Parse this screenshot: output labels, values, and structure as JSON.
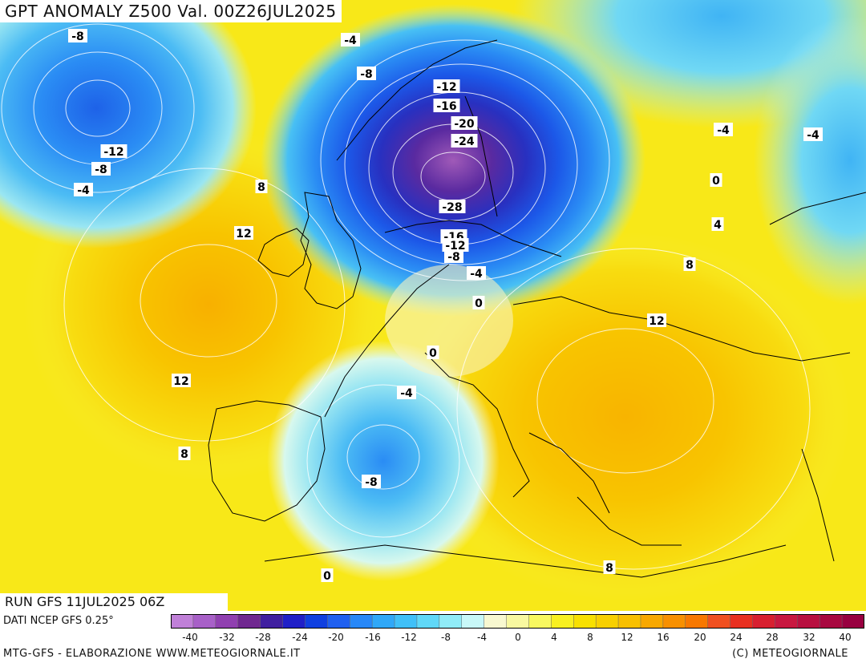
{
  "title": "GPT ANOMALY Z500 Val. 00Z26JUL2025",
  "run": "RUN GFS 11JUL2025 06Z",
  "data_source": "DATI NCEP GFS 0.25°",
  "footer_left": "MTG-GFS - ELABORAZIONE WWW.METEOGIORNALE.IT",
  "footer_right": "(C) METEOGIORNALE",
  "scale": {
    "ticks": [
      "-40",
      "-32",
      "-28",
      "-24",
      "-20",
      "-16",
      "-12",
      "-8",
      "-4",
      "0",
      "4",
      "8",
      "12",
      "16",
      "20",
      "24",
      "28",
      "32",
      "40"
    ],
    "colors": [
      "#c080d8",
      "#a860c8",
      "#9040b0",
      "#702890",
      "#4020a0",
      "#2020c8",
      "#1040e0",
      "#2060f0",
      "#2888f8",
      "#30a8f8",
      "#40c0f8",
      "#60d8f8",
      "#90ecf8",
      "#c8f8f8",
      "#f8f8d0",
      "#f8f8a0",
      "#f8f860",
      "#f8f020",
      "#f8e000",
      "#f8d000",
      "#f8c000",
      "#f8a800",
      "#f89000",
      "#f87800",
      "#f05020",
      "#e83020",
      "#d82030",
      "#c81840",
      "#b81040",
      "#a80840",
      "#980040"
    ]
  },
  "contour_labels": [
    {
      "text": "-8"
    },
    {
      "text": "-4"
    },
    {
      "text": "-8"
    },
    {
      "text": "-12"
    },
    {
      "text": "-16"
    },
    {
      "text": "-20"
    },
    {
      "text": "-24"
    },
    {
      "text": "-12"
    },
    {
      "text": "-8"
    },
    {
      "text": "-4"
    },
    {
      "text": "8"
    },
    {
      "text": "12"
    },
    {
      "text": "-28"
    },
    {
      "text": "-16"
    },
    {
      "text": "-12"
    },
    {
      "text": "-8"
    },
    {
      "text": "-4"
    },
    {
      "text": "0"
    },
    {
      "text": "-4"
    },
    {
      "text": "-4"
    },
    {
      "text": "0"
    },
    {
      "text": "4"
    },
    {
      "text": "8"
    },
    {
      "text": "12"
    },
    {
      "text": "12"
    },
    {
      "text": "0"
    },
    {
      "text": "-4"
    },
    {
      "text": "8"
    },
    {
      "text": "-8"
    },
    {
      "text": "0"
    },
    {
      "text": "8"
    }
  ]
}
